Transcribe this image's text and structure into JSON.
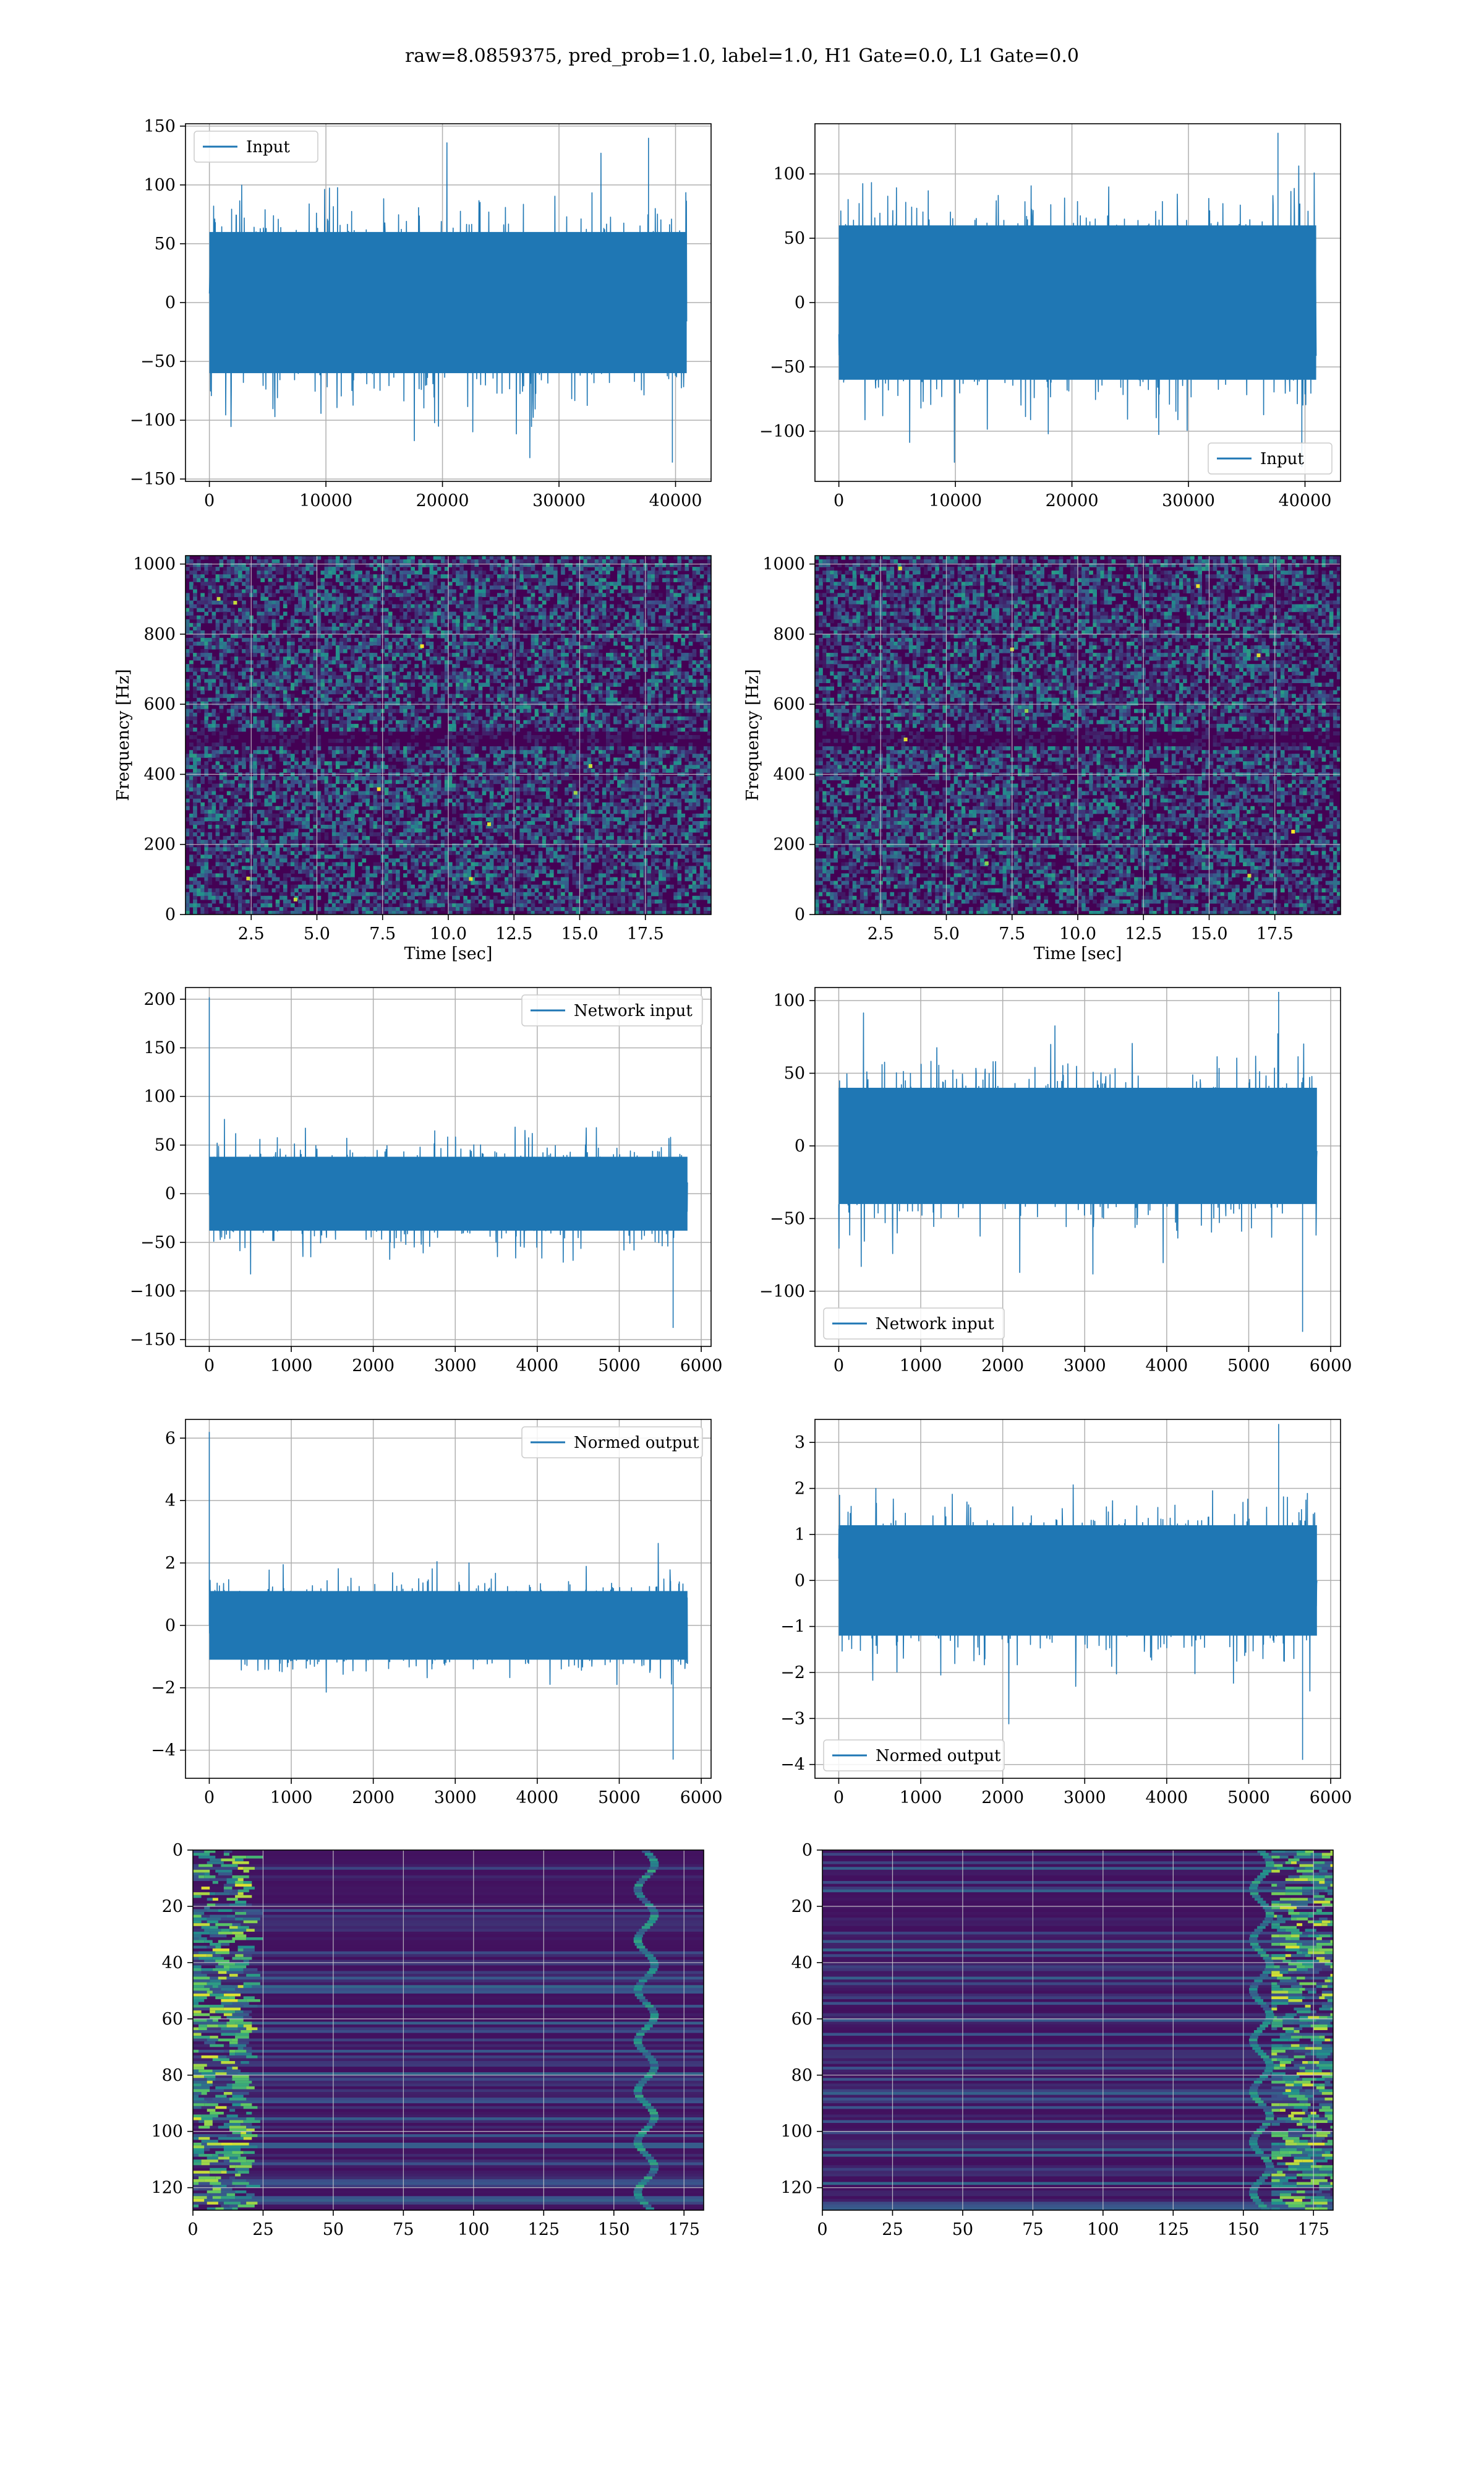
{
  "figure": {
    "suptitle": "raw=8.0859375, pred_prob=1.0, label=1.0, H1 Gate=0.0, L1 Gate=0.0"
  },
  "colors": {
    "series": "#1f77b4",
    "grid": "#b0b0b0",
    "viridis_dark": "#440154",
    "viridis_mid": "#21918c",
    "viridis_bright": "#fde725"
  },
  "chart_data": [
    {
      "id": "r1c1",
      "type": "line",
      "title": "",
      "xlabel": "",
      "ylabel": "",
      "xlim": [
        -2050,
        43050
      ],
      "ylim": [
        -152,
        152
      ],
      "xticks": [
        0,
        10000,
        20000,
        30000,
        40000
      ],
      "yticks": [
        -150,
        -100,
        -50,
        0,
        50,
        100,
        150
      ],
      "yticklabels": [
        "−150",
        "−100",
        "−50",
        "0",
        "50",
        "100",
        "150"
      ],
      "grid": true,
      "legend": "upper left",
      "series": [
        {
          "name": "Input",
          "x_range": [
            0,
            40959
          ],
          "y_min": -136,
          "y_max": 140,
          "y_core": [
            -60,
            60
          ]
        }
      ]
    },
    {
      "id": "r1c2",
      "type": "line",
      "title": "",
      "xlabel": "",
      "ylabel": "",
      "xlim": [
        -2050,
        43050
      ],
      "ylim": [
        -139,
        139
      ],
      "xticks": [
        0,
        10000,
        20000,
        30000,
        40000
      ],
      "yticks": [
        -100,
        -50,
        0,
        50,
        100
      ],
      "yticklabels": [
        "−100",
        "−50",
        "0",
        "50",
        "100"
      ],
      "grid": true,
      "legend": "lower right",
      "series": [
        {
          "name": "Input",
          "x_range": [
            0,
            40959
          ],
          "y_min": -128,
          "y_max": 132,
          "y_core": [
            -60,
            60
          ]
        }
      ]
    },
    {
      "id": "r2c1",
      "type": "heatmap",
      "title": "",
      "xlabel": "Time [sec]",
      "ylabel": "Frequency [Hz]",
      "xlim": [
        0,
        20
      ],
      "ylim": [
        0,
        1024
      ],
      "xticks": [
        2.5,
        5.0,
        7.5,
        10.0,
        12.5,
        15.0,
        17.5
      ],
      "yticks": [
        0,
        200,
        400,
        600,
        800,
        1000
      ],
      "colormap": "viridis",
      "grid": true,
      "dark_band_hz": [
        480,
        520
      ]
    },
    {
      "id": "r2c2",
      "type": "heatmap",
      "title": "",
      "xlabel": "Time [sec]",
      "ylabel": "Frequency [Hz]",
      "xlim": [
        0,
        20
      ],
      "ylim": [
        0,
        1024
      ],
      "xticks": [
        2.5,
        5.0,
        7.5,
        10.0,
        12.5,
        15.0,
        17.5
      ],
      "yticks": [
        0,
        200,
        400,
        600,
        800,
        1000
      ],
      "colormap": "viridis",
      "grid": true,
      "dark_band_hz": [
        480,
        520
      ]
    },
    {
      "id": "r3c1",
      "type": "line",
      "title": "",
      "xlabel": "",
      "ylabel": "",
      "xlim": [
        -290,
        6120
      ],
      "ylim": [
        -157,
        212
      ],
      "xticks": [
        0,
        1000,
        2000,
        3000,
        4000,
        5000,
        6000
      ],
      "yticks": [
        -150,
        -100,
        -50,
        0,
        50,
        100,
        150,
        200
      ],
      "yticklabels": [
        "−150",
        "−100",
        "−50",
        "0",
        "50",
        "100",
        "150",
        "200"
      ],
      "grid": true,
      "legend": "upper right",
      "series": [
        {
          "name": "Network input",
          "x_range": [
            0,
            5832
          ],
          "y_min": -138,
          "y_max": 202,
          "y_core": [
            -38,
            38
          ]
        }
      ]
    },
    {
      "id": "r3c2",
      "type": "line",
      "title": "",
      "xlabel": "",
      "ylabel": "",
      "xlim": [
        -290,
        6120
      ],
      "ylim": [
        -138,
        109
      ],
      "xticks": [
        0,
        1000,
        2000,
        3000,
        4000,
        5000,
        6000
      ],
      "yticks": [
        -100,
        -50,
        0,
        50,
        100
      ],
      "yticklabels": [
        "−100",
        "−50",
        "0",
        "50",
        "100"
      ],
      "grid": true,
      "legend": "lower left",
      "series": [
        {
          "name": "Network input",
          "x_range": [
            0,
            5832
          ],
          "y_min": -128,
          "y_max": 106,
          "y_core": [
            -40,
            40
          ]
        }
      ]
    },
    {
      "id": "r4c1",
      "type": "line",
      "title": "",
      "xlabel": "",
      "ylabel": "",
      "xlim": [
        -290,
        6120
      ],
      "ylim": [
        -4.9,
        6.6
      ],
      "xticks": [
        0,
        1000,
        2000,
        3000,
        4000,
        5000,
        6000
      ],
      "yticks": [
        -4,
        -2,
        0,
        2,
        4,
        6
      ],
      "yticklabels": [
        "−4",
        "−2",
        "0",
        "2",
        "4",
        "6"
      ],
      "grid": true,
      "legend": "upper right",
      "series": [
        {
          "name": "Normed output",
          "x_range": [
            0,
            5832
          ],
          "y_min": -4.3,
          "y_max": 6.2,
          "y_core": [
            -1.1,
            1.1
          ]
        }
      ]
    },
    {
      "id": "r4c2",
      "type": "line",
      "title": "",
      "xlabel": "",
      "ylabel": "",
      "xlim": [
        -290,
        6120
      ],
      "ylim": [
        -4.3,
        3.5
      ],
      "xticks": [
        0,
        1000,
        2000,
        3000,
        4000,
        5000,
        6000
      ],
      "yticks": [
        -4,
        -3,
        -2,
        -1,
        0,
        1,
        2,
        3
      ],
      "yticklabels": [
        "−4",
        "−3",
        "−2",
        "−1",
        "0",
        "1",
        "2",
        "3"
      ],
      "grid": true,
      "legend": "lower left",
      "series": [
        {
          "name": "Normed output",
          "x_range": [
            0,
            5832
          ],
          "y_min": -3.9,
          "y_max": 3.4,
          "y_core": [
            -1.2,
            1.2
          ]
        }
      ]
    },
    {
      "id": "r5c1",
      "type": "heatmap",
      "title": "",
      "xlabel": "",
      "ylabel": "",
      "xlim": [
        0,
        182
      ],
      "ylim": [
        128,
        0
      ],
      "xticks": [
        0,
        25,
        50,
        75,
        100,
        125,
        150,
        175
      ],
      "yticks": [
        0,
        20,
        40,
        60,
        80,
        100,
        120
      ],
      "colormap": "viridis",
      "grid": true,
      "hot_columns": [
        0,
        20
      ],
      "ripple_columns": [
        155,
        170
      ]
    },
    {
      "id": "r5c2",
      "type": "heatmap",
      "title": "",
      "xlabel": "",
      "ylabel": "",
      "xlim": [
        0,
        182
      ],
      "ylim": [
        128,
        0
      ],
      "xticks": [
        0,
        25,
        50,
        75,
        100,
        125,
        150,
        175
      ],
      "yticks": [
        0,
        20,
        40,
        60,
        80,
        100,
        120
      ],
      "colormap": "viridis",
      "grid": true,
      "hot_columns": [
        160,
        182
      ],
      "ripple_columns": [
        150,
        165
      ]
    }
  ]
}
